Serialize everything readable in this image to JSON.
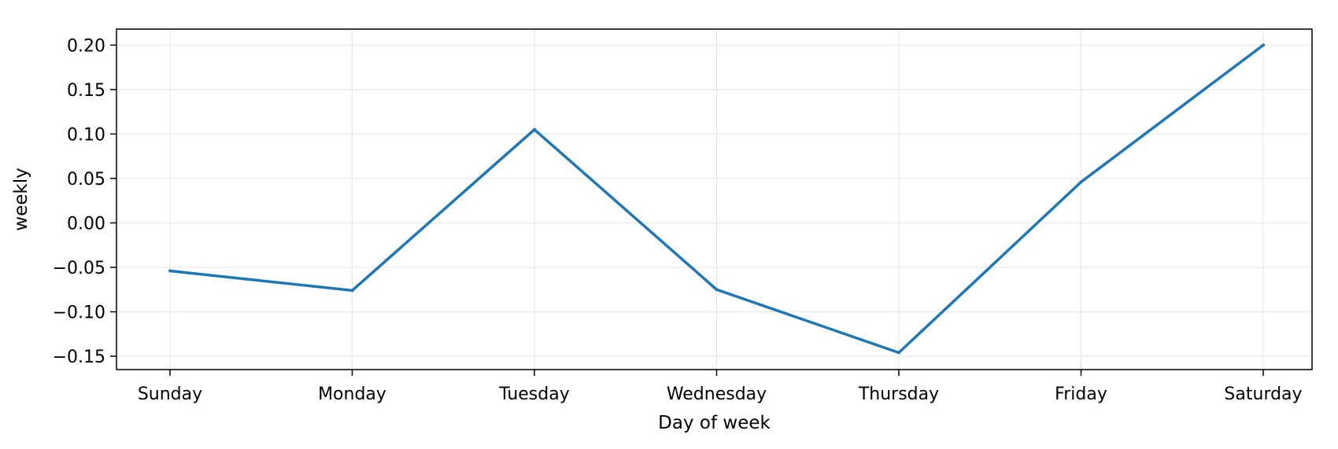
{
  "chart_data": {
    "type": "line",
    "title": "",
    "xlabel": "Day of week",
    "ylabel": "weekly",
    "categories": [
      "Sunday",
      "Monday",
      "Tuesday",
      "Wednesday",
      "Thursday",
      "Friday",
      "Saturday"
    ],
    "series": [
      {
        "values": [
          -0.054,
          -0.076,
          0.105,
          -0.075,
          -0.146,
          0.046,
          0.2
        ]
      }
    ],
    "ylim": [
      -0.165,
      0.218
    ],
    "yticks": [
      -0.15,
      -0.1,
      -0.05,
      0.0,
      0.05,
      0.1,
      0.15,
      0.2
    ],
    "ytick_labels": [
      "−0.15",
      "−0.10",
      "−0.05",
      "0.00",
      "0.05",
      "0.10",
      "0.15",
      "0.20"
    ],
    "grid": true,
    "colors": {
      "line": "#1f77b4",
      "grid": "#e6e6e6",
      "axis": "#000000"
    }
  }
}
